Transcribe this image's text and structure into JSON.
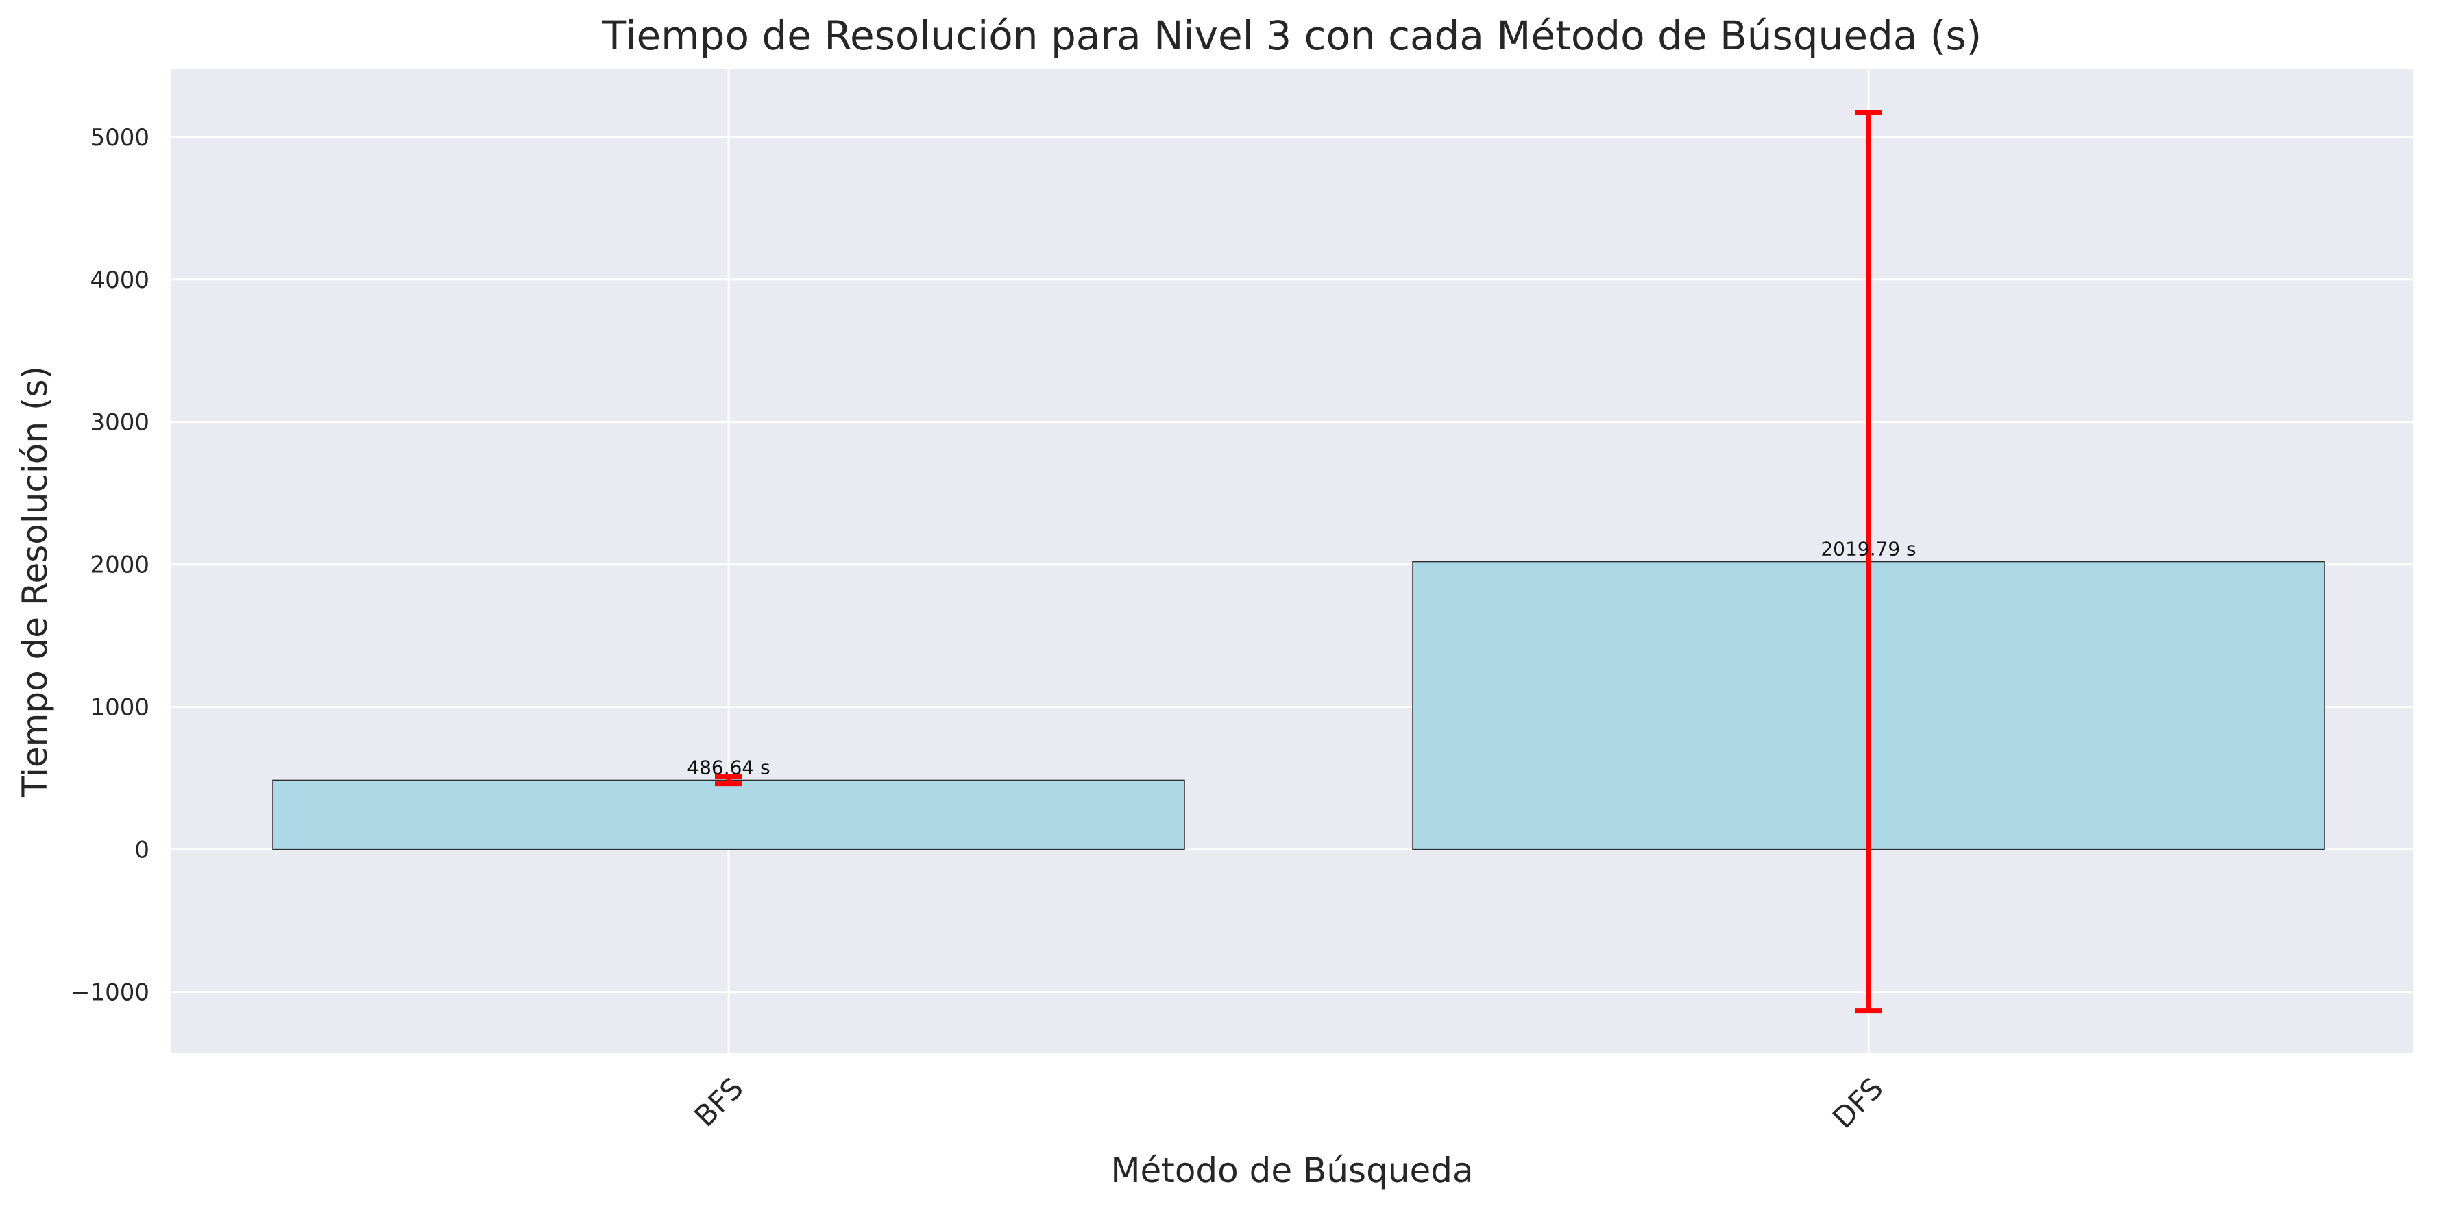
{
  "chart_data": {
    "type": "bar",
    "title": "Tiempo de Resolución para Nivel 3 con cada Método de Búsqueda (s)",
    "xlabel": "Método de Búsqueda",
    "ylabel": "Tiempo de Resolución (s)",
    "categories": [
      "BFS",
      "DFS"
    ],
    "values": [
      486.64,
      2019.79
    ],
    "error": [
      25,
      3150
    ],
    "value_labels": [
      "486.64 s",
      "2019.79 s"
    ],
    "ylim": [
      -1430,
      5480
    ],
    "yticks": [
      -1000,
      0,
      1000,
      2000,
      3000,
      4000,
      5000
    ],
    "ytick_labels": [
      "−1000",
      "0",
      "1000",
      "2000",
      "3000",
      "4000",
      "5000"
    ],
    "grid": true,
    "colors": {
      "bar_fill": "#add8e6",
      "bar_edge": "#2b2b2b",
      "error_bar": "#ff0000",
      "plot_background": "#eaeaf2",
      "grid": "#ffffff",
      "text": "#262626"
    }
  }
}
